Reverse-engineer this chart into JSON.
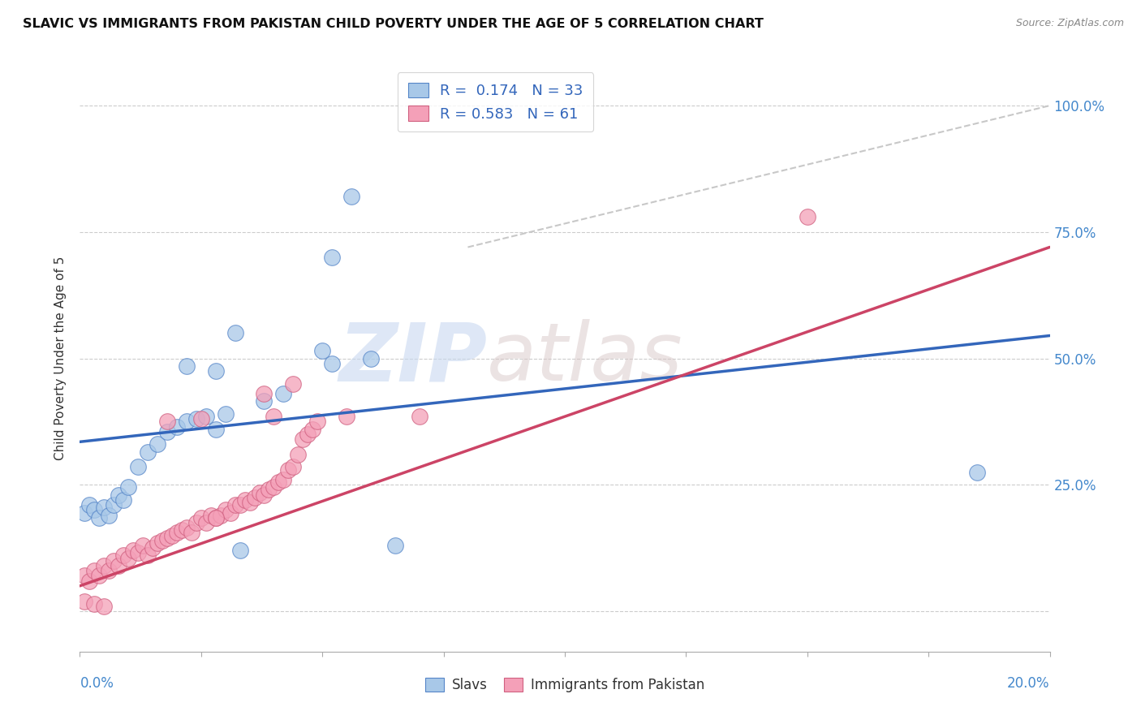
{
  "title": "SLAVIC VS IMMIGRANTS FROM PAKISTAN CHILD POVERTY UNDER THE AGE OF 5 CORRELATION CHART",
  "source": "Source: ZipAtlas.com",
  "ylabel": "Child Poverty Under the Age of 5",
  "yticks": [
    0.0,
    0.25,
    0.5,
    0.75,
    1.0
  ],
  "ytick_labels": [
    "",
    "25.0%",
    "50.0%",
    "75.0%",
    "100.0%"
  ],
  "xmin": 0.0,
  "xmax": 0.2,
  "ymin": -0.08,
  "ymax": 1.08,
  "slavs_label": "Slavs",
  "pakistan_label": "Immigrants from Pakistan",
  "slavs_color": "#a8c8e8",
  "pakistan_color": "#f4a0b8",
  "slavs_edge_color": "#5585c8",
  "pakistan_edge_color": "#d06080",
  "slavs_line_color": "#3366bb",
  "pakistan_line_color": "#cc4466",
  "ref_line_color": "#c8c8c8",
  "watermark": "ZIPatlas",
  "watermark_color": "#d0dff0",
  "R_slavs": "0.174",
  "N_slavs": "33",
  "R_pakistan": "0.583",
  "N_pakistan": "61",
  "slavs_line": [
    0.0,
    0.335,
    0.2,
    0.545
  ],
  "pakistan_line": [
    0.0,
    0.05,
    0.2,
    0.72
  ],
  "ref_line": [
    0.08,
    0.72,
    0.2,
    1.0
  ],
  "slavs_points": [
    [
      0.001,
      0.195
    ],
    [
      0.002,
      0.21
    ],
    [
      0.003,
      0.2
    ],
    [
      0.004,
      0.185
    ],
    [
      0.005,
      0.205
    ],
    [
      0.006,
      0.19
    ],
    [
      0.007,
      0.21
    ],
    [
      0.008,
      0.23
    ],
    [
      0.009,
      0.22
    ],
    [
      0.01,
      0.245
    ],
    [
      0.012,
      0.285
    ],
    [
      0.014,
      0.315
    ],
    [
      0.016,
      0.33
    ],
    [
      0.018,
      0.355
    ],
    [
      0.02,
      0.365
    ],
    [
      0.022,
      0.375
    ],
    [
      0.024,
      0.38
    ],
    [
      0.026,
      0.385
    ],
    [
      0.028,
      0.36
    ],
    [
      0.03,
      0.39
    ],
    [
      0.038,
      0.415
    ],
    [
      0.042,
      0.43
    ],
    [
      0.052,
      0.49
    ],
    [
      0.028,
      0.475
    ],
    [
      0.06,
      0.5
    ],
    [
      0.022,
      0.485
    ],
    [
      0.032,
      0.55
    ],
    [
      0.05,
      0.515
    ],
    [
      0.056,
      0.82
    ],
    [
      0.052,
      0.7
    ],
    [
      0.033,
      0.12
    ],
    [
      0.065,
      0.13
    ],
    [
      0.185,
      0.275
    ]
  ],
  "pakistan_points": [
    [
      0.001,
      0.07
    ],
    [
      0.002,
      0.06
    ],
    [
      0.003,
      0.08
    ],
    [
      0.004,
      0.07
    ],
    [
      0.005,
      0.09
    ],
    [
      0.006,
      0.08
    ],
    [
      0.007,
      0.1
    ],
    [
      0.008,
      0.09
    ],
    [
      0.009,
      0.11
    ],
    [
      0.01,
      0.105
    ],
    [
      0.011,
      0.12
    ],
    [
      0.012,
      0.115
    ],
    [
      0.013,
      0.13
    ],
    [
      0.014,
      0.11
    ],
    [
      0.015,
      0.125
    ],
    [
      0.016,
      0.135
    ],
    [
      0.017,
      0.14
    ],
    [
      0.018,
      0.145
    ],
    [
      0.019,
      0.15
    ],
    [
      0.02,
      0.155
    ],
    [
      0.021,
      0.16
    ],
    [
      0.022,
      0.165
    ],
    [
      0.023,
      0.155
    ],
    [
      0.024,
      0.175
    ],
    [
      0.025,
      0.185
    ],
    [
      0.026,
      0.175
    ],
    [
      0.027,
      0.19
    ],
    [
      0.028,
      0.185
    ],
    [
      0.029,
      0.19
    ],
    [
      0.03,
      0.2
    ],
    [
      0.031,
      0.195
    ],
    [
      0.032,
      0.21
    ],
    [
      0.033,
      0.21
    ],
    [
      0.034,
      0.22
    ],
    [
      0.035,
      0.215
    ],
    [
      0.036,
      0.225
    ],
    [
      0.037,
      0.235
    ],
    [
      0.038,
      0.23
    ],
    [
      0.039,
      0.24
    ],
    [
      0.04,
      0.245
    ],
    [
      0.041,
      0.255
    ],
    [
      0.042,
      0.26
    ],
    [
      0.043,
      0.28
    ],
    [
      0.044,
      0.285
    ],
    [
      0.045,
      0.31
    ],
    [
      0.046,
      0.34
    ],
    [
      0.047,
      0.35
    ],
    [
      0.048,
      0.36
    ],
    [
      0.049,
      0.375
    ],
    [
      0.018,
      0.375
    ],
    [
      0.025,
      0.38
    ],
    [
      0.028,
      0.185
    ],
    [
      0.04,
      0.385
    ],
    [
      0.055,
      0.385
    ],
    [
      0.07,
      0.385
    ],
    [
      0.038,
      0.43
    ],
    [
      0.044,
      0.45
    ],
    [
      0.001,
      0.02
    ],
    [
      0.003,
      0.015
    ],
    [
      0.005,
      0.01
    ],
    [
      0.15,
      0.78
    ]
  ]
}
